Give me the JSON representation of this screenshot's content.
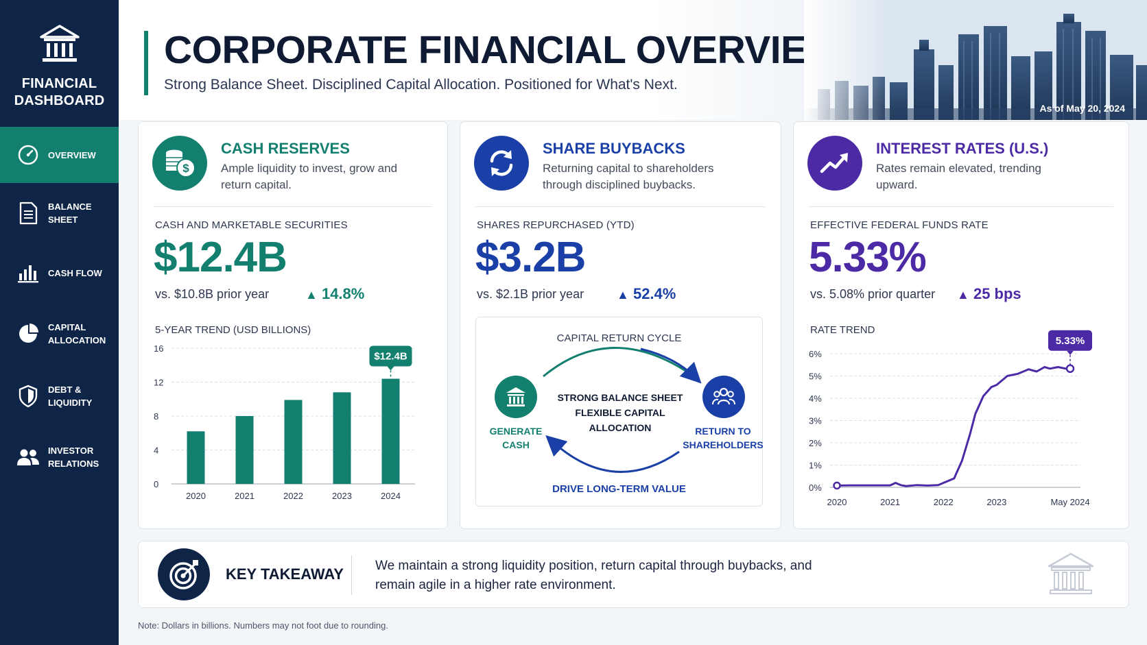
{
  "sidebar": {
    "brand_title": "FINANCIAL\nDASHBOARD",
    "items": [
      {
        "label": "OVERVIEW",
        "icon": "gauge-icon",
        "active": true
      },
      {
        "label": "BALANCE SHEET",
        "icon": "document-icon",
        "active": false
      },
      {
        "label": "CASH FLOW",
        "icon": "bar-chart-icon",
        "active": false
      },
      {
        "label": "CAPITAL\nALLOCATION",
        "icon": "pie-chart-icon",
        "active": false
      },
      {
        "label": "DEBT & LIQUIDITY",
        "icon": "shield-icon",
        "active": false
      },
      {
        "label": "INVESTOR\nRELATIONS",
        "icon": "people-icon",
        "active": false
      }
    ]
  },
  "header": {
    "title": "CORPORATE FINANCIAL OVERVIEW",
    "subtitle": "Strong Balance Sheet. Disciplined Capital Allocation. Positioned for What's Next.",
    "as_of": "As of May 20, 2024"
  },
  "cash": {
    "title": "CASH RESERVES",
    "desc": "Ample liquidity to invest, grow and return capital.",
    "metric_label": "CASH AND MARKETABLE SECURITIES",
    "value": "$12.4B",
    "compare": "vs. $10.8B prior year",
    "change": "14.8%",
    "chart_title": "5-YEAR TREND (USD BILLIONS)"
  },
  "buybacks": {
    "title": "SHARE BUYBACKS",
    "desc": "Returning capital to shareholders through disciplined buybacks.",
    "metric_label": "SHARES REPURCHASED (YTD)",
    "value": "$3.2B",
    "compare": "vs. $2.1B prior year",
    "change": "52.4%",
    "cycle": {
      "title": "CAPITAL RETURN CYCLE",
      "center": "STRONG BALANCE SHEET\nFLEXIBLE CAPITAL\nALLOCATION",
      "left": "GENERATE\nCASH",
      "right": "RETURN TO\nSHAREHOLDERS",
      "bottom": "DRIVE LONG-TERM VALUE"
    }
  },
  "rates": {
    "title": "INTEREST RATES (U.S.)",
    "desc": "Rates remain elevated, trending upward.",
    "metric_label": "EFFECTIVE FEDERAL FUNDS RATE",
    "value": "5.33%",
    "compare": "vs. 5.08% prior quarter",
    "change": "25 bps",
    "chart_title": "RATE TREND"
  },
  "takeaway": {
    "label": "KEY TAKEAWAY",
    "text": "We maintain a strong liquidity position, return capital through buybacks, and remain agile in a higher rate environment."
  },
  "footnote": "Note: Dollars in billions. Numbers may not foot due to rounding.",
  "colors": {
    "green": "#137f6f",
    "blue": "#1a3fa6",
    "purple": "#4c2aa5",
    "navy": "#0e2547"
  },
  "chart_data": [
    {
      "type": "bar",
      "categories": [
        "2020",
        "2021",
        "2022",
        "2023",
        "2024"
      ],
      "values": [
        6.2,
        8.0,
        9.9,
        10.8,
        12.4
      ],
      "ylim": [
        0,
        16
      ],
      "yticks": [
        "0",
        "4",
        "8",
        "12",
        "16"
      ],
      "callout": "$12.4B",
      "grid": true
    },
    {
      "type": "line",
      "x": [
        2020.0,
        2020.25,
        2020.5,
        2020.75,
        2021.0,
        2021.1,
        2021.2,
        2021.3,
        2021.5,
        2021.7,
        2021.9,
        2022.0,
        2022.2,
        2022.35,
        2022.5,
        2022.6,
        2022.75,
        2022.9,
        2023.0,
        2023.2,
        2023.4,
        2023.6,
        2023.75,
        2023.9,
        2024.0,
        2024.15,
        2024.3,
        2024.38
      ],
      "y": [
        0.08,
        0.09,
        0.09,
        0.09,
        0.09,
        0.2,
        0.1,
        0.06,
        0.1,
        0.08,
        0.1,
        0.2,
        0.4,
        1.2,
        2.4,
        3.3,
        4.1,
        4.5,
        4.6,
        5.0,
        5.1,
        5.3,
        5.2,
        5.4,
        5.33,
        5.4,
        5.33,
        5.33
      ],
      "xticks": [
        "2020",
        "2021",
        "2022",
        "2023",
        "May 2024"
      ],
      "yticks": [
        "0%",
        "1%",
        "2%",
        "3%",
        "4%",
        "5%",
        "6%"
      ],
      "ylim": [
        0,
        6
      ],
      "callout": "5.33%",
      "grid": true
    }
  ]
}
